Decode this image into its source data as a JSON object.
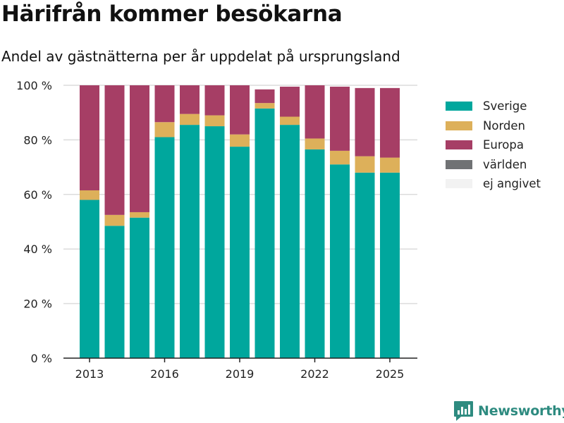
{
  "title": "Härifrån kommer besökarna",
  "subtitle": "Andel av gästnätterna per år uppdelat på ursprungsland",
  "brand": {
    "label": "Newsworthy",
    "color": "#2e8b80",
    "icon": "bar-chart-logo-icon"
  },
  "colors": {
    "Sverige": "#00a79d",
    "Norden": "#ddb05a",
    "Europa": "#a63e65",
    "världen": "#707274",
    "ej angivet": "#f2f2f2"
  },
  "chart_data": {
    "type": "bar",
    "stacked": true,
    "categories": [
      "2013",
      "2014",
      "2015",
      "2016",
      "2017",
      "2018",
      "2019",
      "2020",
      "2021",
      "2022",
      "2023",
      "2024",
      "2025"
    ],
    "series": [
      {
        "name": "Sverige",
        "values": [
          58,
          48.5,
          51.5,
          81,
          85.5,
          85,
          77.5,
          91.5,
          85.5,
          76.5,
          71,
          68,
          68
        ]
      },
      {
        "name": "Norden",
        "values": [
          3.5,
          4,
          2,
          5.5,
          4,
          4,
          4.5,
          2,
          3,
          4,
          5,
          6,
          5.5
        ]
      },
      {
        "name": "Europa",
        "values": [
          38.5,
          47.5,
          46.5,
          13.5,
          10.5,
          11,
          18,
          5,
          11,
          19.5,
          23.5,
          25,
          25.5
        ]
      },
      {
        "name": "världen",
        "values": [
          0,
          0,
          0,
          0,
          0,
          0,
          0,
          0,
          0,
          0,
          0,
          0,
          0
        ]
      },
      {
        "name": "ej angivet",
        "values": [
          0,
          0,
          0,
          0,
          0,
          0,
          0,
          0,
          0,
          0,
          0,
          0,
          0
        ]
      }
    ],
    "x_tick_labels": [
      "2013",
      "2016",
      "2019",
      "2022",
      "2025"
    ],
    "y_ticks": [
      0,
      20,
      40,
      60,
      80,
      100
    ],
    "y_tick_labels": [
      "0 %",
      "20 %",
      "40 %",
      "60 %",
      "80 %",
      "100 %"
    ],
    "ylim": [
      0,
      100
    ],
    "grid": true,
    "legend_position": "right"
  }
}
